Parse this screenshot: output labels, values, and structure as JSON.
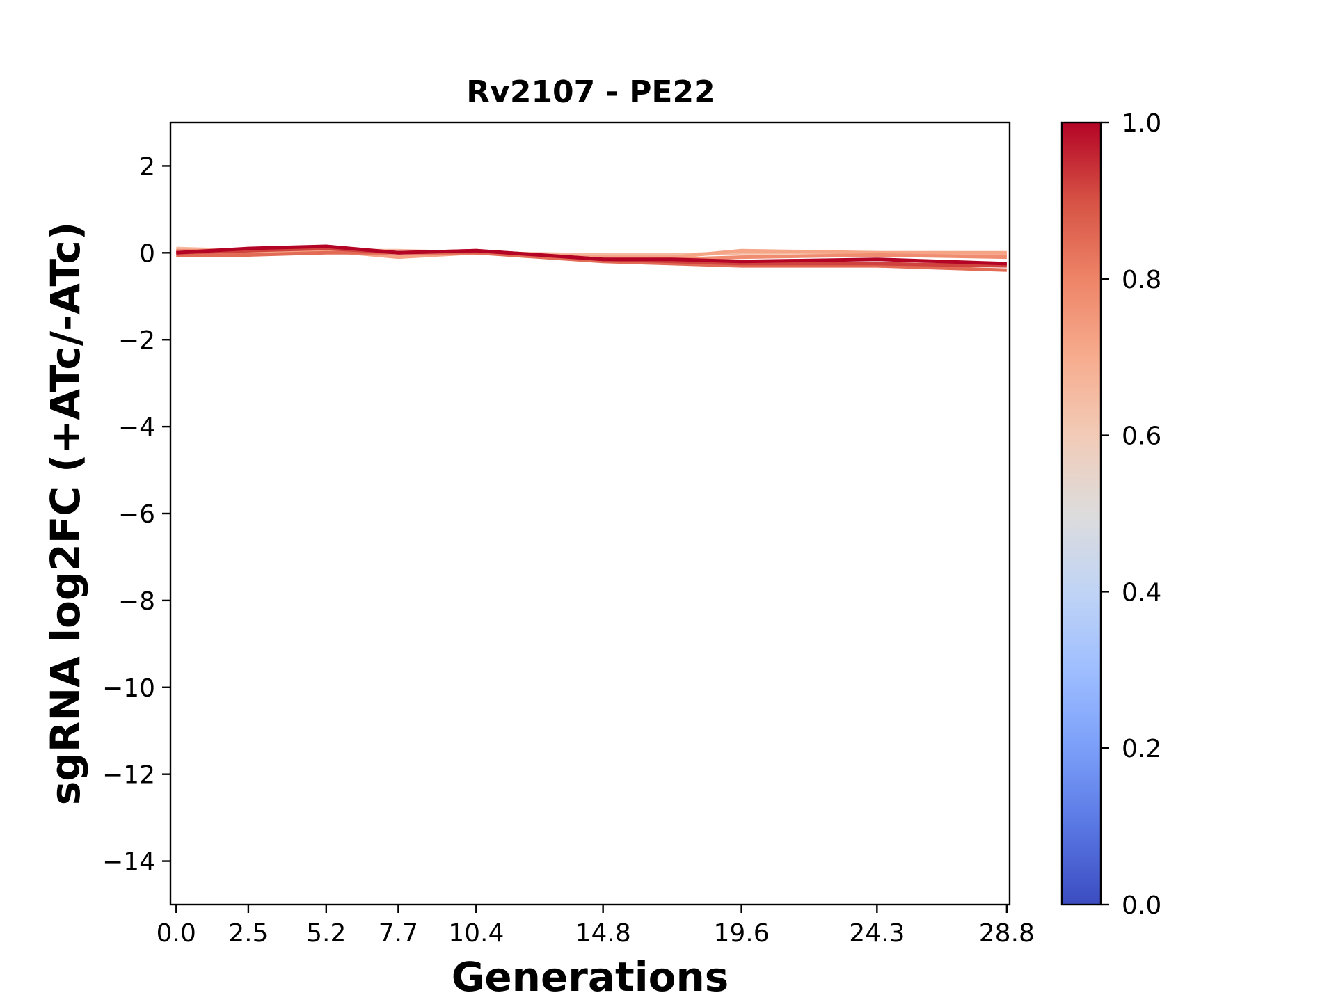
{
  "chart_data": {
    "type": "line",
    "title": "Rv2107 - PE22",
    "xlabel": "Generations",
    "ylabel": "sgRNA log2FC (+ATc/-ATc)",
    "x": [
      0.0,
      2.5,
      5.2,
      7.7,
      10.4,
      14.8,
      17.2,
      19.6,
      24.3,
      28.8
    ],
    "xticks": [
      "0.0",
      "2.5",
      "5.2",
      "7.7",
      "10.4",
      "14.8",
      "19.6",
      "24.3",
      "28.8"
    ],
    "xlim": [
      -0.2,
      28.9
    ],
    "ylim": [
      -15,
      3
    ],
    "yticks": [
      2,
      0,
      -2,
      -4,
      -6,
      -8,
      -10,
      -12,
      -14
    ],
    "ytick_labels": [
      "2",
      "0",
      "−2",
      "−4",
      "−6",
      "−8",
      "−10",
      "−12",
      "−14"
    ],
    "grid": false,
    "series": [
      {
        "color_value": 0.65,
        "values": [
          0.1,
          0.05,
          0.05,
          0.05,
          0.0,
          -0.05,
          -0.05,
          0.0,
          0.0,
          -0.05
        ]
      },
      {
        "color_value": 0.72,
        "values": [
          0.0,
          0.0,
          0.05,
          -0.1,
          0.0,
          -0.1,
          -0.1,
          0.05,
          0.0,
          0.0
        ]
      },
      {
        "color_value": 0.78,
        "values": [
          0.05,
          0.05,
          0.1,
          0.0,
          0.0,
          -0.15,
          -0.15,
          -0.1,
          -0.05,
          -0.1
        ]
      },
      {
        "color_value": 0.85,
        "values": [
          -0.05,
          -0.05,
          0.0,
          0.0,
          0.0,
          -0.2,
          -0.25,
          -0.3,
          -0.3,
          -0.4
        ]
      },
      {
        "color_value": 0.92,
        "values": [
          0.0,
          0.05,
          0.1,
          0.0,
          0.05,
          -0.15,
          -0.2,
          -0.25,
          -0.25,
          -0.3
        ]
      },
      {
        "color_value": 1.0,
        "values": [
          0.0,
          0.1,
          0.15,
          0.0,
          0.05,
          -0.15,
          -0.15,
          -0.2,
          -0.15,
          -0.25
        ]
      }
    ],
    "colorbar": {
      "cmap": "coolwarm",
      "range": [
        0.0,
        1.0
      ],
      "ticks": [
        "0.0",
        "0.2",
        "0.4",
        "0.6",
        "0.8",
        "1.0"
      ]
    }
  }
}
